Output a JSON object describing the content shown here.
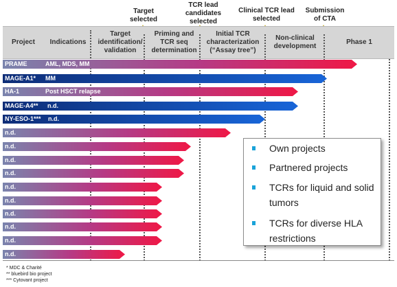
{
  "milestones": [
    {
      "label": "Target\nselected"
    },
    {
      "label": "TCR lead\ncandidates\nselected"
    },
    {
      "label": "Clinical TCR lead\nselected"
    },
    {
      "label": "Submission\nof CTA"
    }
  ],
  "header": {
    "project": "Project",
    "indications": "Indications",
    "phases": [
      "Target\nidentification/\nvalidation",
      "Priming and\nTCR seq\ndetermination",
      "Initial TCR\ncharacterization\n(“Assay tree”)",
      "Non-clinical\ndevelopment",
      "Phase 1"
    ]
  },
  "projects": [
    {
      "name": "PRAME",
      "indication": "AML, MDS, MM",
      "type": "own"
    },
    {
      "name": "MAGE-A1*",
      "indication": "MM",
      "type": "partnered"
    },
    {
      "name": "HA-1",
      "indication": "Post HSCT relapse",
      "type": "own"
    },
    {
      "name": "MAGE-A4**",
      "indication": "n.d.",
      "type": "partnered"
    },
    {
      "name": "NY-ESO-1***",
      "indication": "n.d.",
      "type": "partnered"
    },
    {
      "name": "n.d.",
      "indication": "",
      "type": "own"
    },
    {
      "name": "n.d.",
      "indication": "",
      "type": "own"
    },
    {
      "name": "n.d.",
      "indication": "",
      "type": "own"
    },
    {
      "name": "n.d.",
      "indication": "",
      "type": "own"
    },
    {
      "name": "n.d.",
      "indication": "",
      "type": "own"
    },
    {
      "name": "n.d.",
      "indication": "",
      "type": "own"
    },
    {
      "name": "n.d.",
      "indication": "",
      "type": "own"
    },
    {
      "name": "n.d.",
      "indication": "",
      "type": "own"
    },
    {
      "name": "n.d.",
      "indication": "",
      "type": "own"
    },
    {
      "name": "n.d.",
      "indication": "",
      "type": "own"
    }
  ],
  "legend": [
    "Own projects",
    "Partnered projects",
    "TCRs for liquid and solid tumors",
    "TCRs for diverse HLA restrictions"
  ],
  "footnotes": [
    "* MDC & Charité",
    "** bluebird bio project",
    "*** Cytovant project"
  ],
  "colors": {
    "own_start": "#7a84ad",
    "own_mid": "#b53a85",
    "own_end": "#ef1846",
    "partnered_start": "#0e2d77",
    "partnered_end": "#1865d8",
    "star": "#ffe832",
    "bullet": "#1aa3d9"
  }
}
